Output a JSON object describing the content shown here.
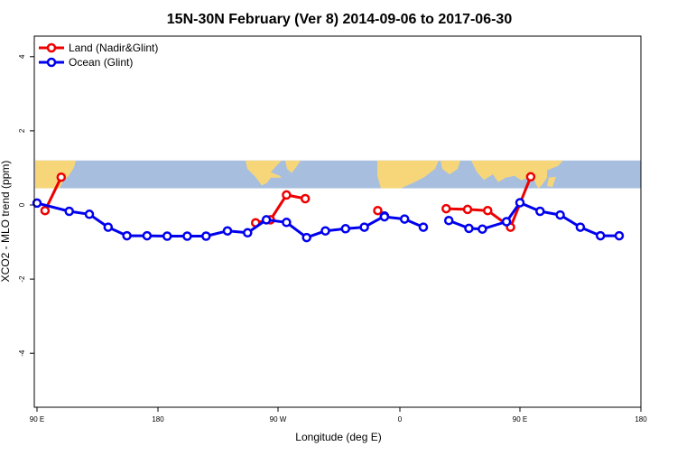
{
  "chart_data": {
    "type": "line",
    "title": "15N-30N February (Ver 8)   2014-09-06 to 2017-06-30",
    "xlabel": "Longitude (deg E)",
    "ylabel": "XCO2 - MLO trend (ppm)",
    "xlim": [
      90,
      450
    ],
    "ylim": [
      -5,
      4.6
    ],
    "x_ticks": [
      {
        "value": 90,
        "label": "90 E"
      },
      {
        "value": 180,
        "label": "180"
      },
      {
        "value": 270,
        "label": "90 W"
      },
      {
        "value": 360,
        "label": "0"
      },
      {
        "value": 450,
        "label": "90 E"
      },
      {
        "value": 540,
        "label": "180"
      }
    ],
    "y_ticks": [
      {
        "value": 4,
        "label": "4"
      },
      {
        "value": 2,
        "label": "2"
      },
      {
        "value": 0,
        "label": "0"
      },
      {
        "value": -2,
        "label": "-2"
      },
      {
        "value": -4,
        "label": "-4"
      }
    ],
    "legend_position": "top-left",
    "map_strip": {
      "ymin": 0.45,
      "ymax": 1.2,
      "ocean_color": "#a7bede",
      "land_color": "#f7d67a"
    },
    "series": [
      {
        "name": "Land (Nadir&Glint)",
        "color": "#ee0000",
        "segments": [
          {
            "x": [
              96,
              108
            ],
            "y": [
              -0.15,
              0.75
            ]
          },
          {
            "x": [
              253,
              264,
              276,
              290
            ],
            "y": [
              -0.48,
              -0.4,
              0.27,
              0.17
            ]
          },
          {
            "x": [
              344,
              349
            ],
            "y": [
              -0.15,
              -0.3
            ]
          },
          {
            "x": [
              395,
              411,
              426,
              443,
              458
            ],
            "y": [
              -0.1,
              -0.12,
              -0.15,
              -0.6,
              0.76
            ]
          }
        ]
      },
      {
        "name": "Ocean (Glint)",
        "color": "#0000ee",
        "segments": [
          {
            "x": [
              90,
              114,
              129,
              143,
              157,
              172,
              187,
              202,
              216,
              232,
              247,
              261,
              276,
              291,
              305,
              320,
              334,
              349
            ],
            "y": [
              0.05,
              -0.17,
              -0.25,
              -0.6,
              -0.83,
              -0.83,
              -0.84,
              -0.84,
              -0.84,
              -0.7,
              -0.75,
              -0.4,
              -0.47,
              -0.88,
              -0.7,
              -0.64,
              -0.6,
              -0.3
            ]
          },
          {
            "x": [
              349,
              364,
              378
            ],
            "y": [
              -0.32,
              -0.38,
              -0.6
            ]
          },
          {
            "x": [
              397,
              412,
              422,
              440,
              450,
              465,
              480,
              495,
              510,
              524
            ],
            "y": [
              -0.42,
              -0.63,
              -0.65,
              -0.45,
              0.06,
              -0.17,
              -0.27,
              -0.6,
              -0.83,
              -0.83
            ]
          }
        ]
      }
    ]
  }
}
